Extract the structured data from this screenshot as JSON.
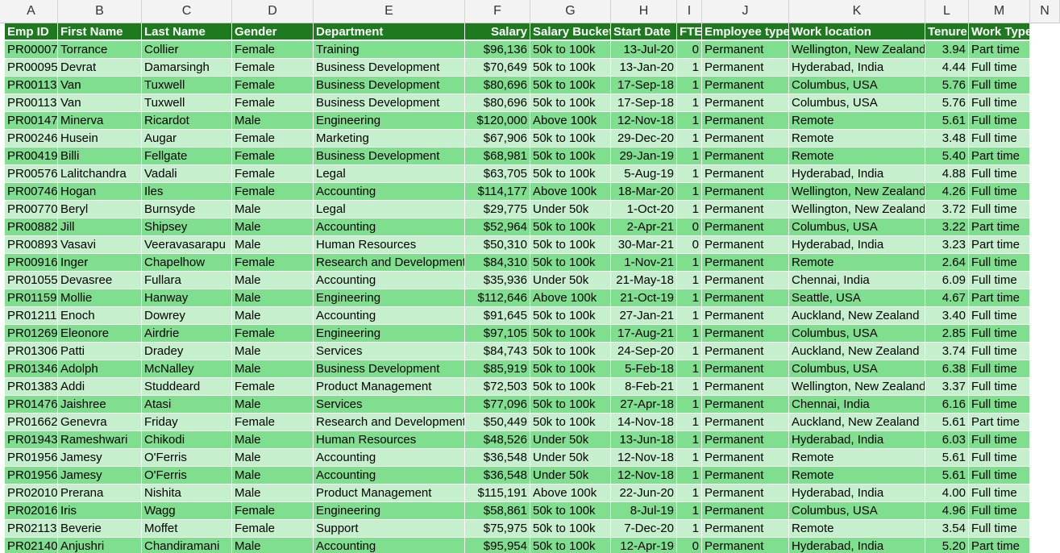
{
  "columns": [
    "A",
    "B",
    "C",
    "D",
    "E",
    "F",
    "G",
    "H",
    "I",
    "J",
    "K",
    "L",
    "M",
    "N"
  ],
  "headers": [
    "Emp ID",
    "First Name",
    "Last Name",
    "Gender",
    "Department",
    "Salary",
    "Salary Bucket",
    "Start Date",
    "FTE",
    "Employee type",
    "Work location",
    "Tenure",
    "Work Type"
  ],
  "rows": [
    [
      "PR00007",
      "Torrance",
      "Collier",
      "Female",
      "Training",
      "$96,136",
      "50k to 100k",
      "13-Jul-20",
      "0",
      "Permanent",
      "Wellington, New Zealand",
      "3.94",
      "Part time"
    ],
    [
      "PR00095",
      "Devrat",
      "Damarsingh",
      "Female",
      "Business Development",
      "$70,649",
      "50k to 100k",
      "13-Jan-20",
      "1",
      "Permanent",
      "Hyderabad, India",
      "4.44",
      "Full time"
    ],
    [
      "PR00113",
      "Van",
      "Tuxwell",
      "Female",
      "Business Development",
      "$80,696",
      "50k to 100k",
      "17-Sep-18",
      "1",
      "Permanent",
      "Columbus, USA",
      "5.76",
      "Full time"
    ],
    [
      "PR00113",
      "Van",
      "Tuxwell",
      "Female",
      "Business Development",
      "$80,696",
      "50k to 100k",
      "17-Sep-18",
      "1",
      "Permanent",
      "Columbus, USA",
      "5.76",
      "Full time"
    ],
    [
      "PR00147",
      "Minerva",
      "Ricardot",
      "Male",
      "Engineering",
      "$120,000",
      "Above 100k",
      "12-Nov-18",
      "1",
      "Permanent",
      "Remote",
      "5.61",
      "Full time"
    ],
    [
      "PR00246",
      "Husein",
      "Augar",
      "Female",
      "Marketing",
      "$67,906",
      "50k to 100k",
      "29-Dec-20",
      "1",
      "Permanent",
      "Remote",
      "3.48",
      "Full time"
    ],
    [
      "PR00419",
      "Billi",
      "Fellgate",
      "Female",
      "Business Development",
      "$68,981",
      "50k to 100k",
      "29-Jan-19",
      "1",
      "Permanent",
      "Remote",
      "5.40",
      "Part time"
    ],
    [
      "PR00576",
      "Lalitchandra",
      "Vadali",
      "Female",
      "Legal",
      "$63,705",
      "50k to 100k",
      "5-Aug-19",
      "1",
      "Permanent",
      "Hyderabad, India",
      "4.88",
      "Full time"
    ],
    [
      "PR00746",
      "Hogan",
      "Iles",
      "Female",
      "Accounting",
      "$114,177",
      "Above 100k",
      "18-Mar-20",
      "1",
      "Permanent",
      "Wellington, New Zealand",
      "4.26",
      "Full time"
    ],
    [
      "PR00770",
      "Beryl",
      "Burnsyde",
      "Male",
      "Legal",
      "$29,775",
      "Under 50k",
      "1-Oct-20",
      "1",
      "Permanent",
      "Wellington, New Zealand",
      "3.72",
      "Full time"
    ],
    [
      "PR00882",
      "Jill",
      "Shipsey",
      "Male",
      "Accounting",
      "$52,964",
      "50k to 100k",
      "2-Apr-21",
      "0",
      "Permanent",
      "Columbus, USA",
      "3.22",
      "Part time"
    ],
    [
      "PR00893",
      "Vasavi",
      "Veeravasarapu",
      "Male",
      "Human Resources",
      "$50,310",
      "50k to 100k",
      "30-Mar-21",
      "0",
      "Permanent",
      "Hyderabad, India",
      "3.23",
      "Part time"
    ],
    [
      "PR00916",
      "Inger",
      "Chapelhow",
      "Female",
      "Research and Development",
      "$84,310",
      "50k to 100k",
      "1-Nov-21",
      "1",
      "Permanent",
      "Remote",
      "2.64",
      "Full time"
    ],
    [
      "PR01055",
      "Devasree",
      "Fullara",
      "Male",
      "Accounting",
      "$35,936",
      "Under 50k",
      "21-May-18",
      "1",
      "Permanent",
      "Chennai, India",
      "6.09",
      "Full time"
    ],
    [
      "PR01159",
      "Mollie",
      "Hanway",
      "Male",
      "Engineering",
      "$112,646",
      "Above 100k",
      "21-Oct-19",
      "1",
      "Permanent",
      "Seattle, USA",
      "4.67",
      "Part time"
    ],
    [
      "PR01211",
      "Enoch",
      "Dowrey",
      "Male",
      "Accounting",
      "$91,645",
      "50k to 100k",
      "27-Jan-21",
      "1",
      "Permanent",
      "Auckland, New Zealand",
      "3.40",
      "Full time"
    ],
    [
      "PR01269",
      "Eleonore",
      "Airdrie",
      "Female",
      "Engineering",
      "$97,105",
      "50k to 100k",
      "17-Aug-21",
      "1",
      "Permanent",
      "Columbus, USA",
      "2.85",
      "Full time"
    ],
    [
      "PR01306",
      "Patti",
      "Dradey",
      "Male",
      "Services",
      "$84,743",
      "50k to 100k",
      "24-Sep-20",
      "1",
      "Permanent",
      "Auckland, New Zealand",
      "3.74",
      "Full time"
    ],
    [
      "PR01346",
      "Adolph",
      "McNalley",
      "Male",
      "Business Development",
      "$85,919",
      "50k to 100k",
      "5-Feb-18",
      "1",
      "Permanent",
      "Columbus, USA",
      "6.38",
      "Full time"
    ],
    [
      "PR01383",
      "Addi",
      "Studdeard",
      "Female",
      "Product Management",
      "$72,503",
      "50k to 100k",
      "8-Feb-21",
      "1",
      "Permanent",
      "Wellington, New Zealand",
      "3.37",
      "Full time"
    ],
    [
      "PR01476",
      "Jaishree",
      "Atasi",
      "Male",
      "Services",
      "$77,096",
      "50k to 100k",
      "27-Apr-18",
      "1",
      "Permanent",
      "Chennai, India",
      "6.16",
      "Full time"
    ],
    [
      "PR01662",
      "Genevra",
      "Friday",
      "Female",
      "Research and Development",
      "$50,449",
      "50k to 100k",
      "14-Nov-18",
      "1",
      "Permanent",
      "Auckland, New Zealand",
      "5.61",
      "Part time"
    ],
    [
      "PR01943",
      "Rameshwari",
      "Chikodi",
      "Male",
      "Human Resources",
      "$48,526",
      "Under 50k",
      "13-Jun-18",
      "1",
      "Permanent",
      "Hyderabad, India",
      "6.03",
      "Full time"
    ],
    [
      "PR01956",
      "Jamesy",
      "O'Ferris",
      "Male",
      "Accounting",
      "$36,548",
      "Under 50k",
      "12-Nov-18",
      "1",
      "Permanent",
      "Remote",
      "5.61",
      "Full time"
    ],
    [
      "PR01956",
      "Jamesy",
      "O'Ferris",
      "Male",
      "Accounting",
      "$36,548",
      "Under 50k",
      "12-Nov-18",
      "1",
      "Permanent",
      "Remote",
      "5.61",
      "Full time"
    ],
    [
      "PR02010",
      "Prerana",
      "Nishita",
      "Male",
      "Product Management",
      "$115,191",
      "Above 100k",
      "22-Jun-20",
      "1",
      "Permanent",
      "Hyderabad, India",
      "4.00",
      "Full time"
    ],
    [
      "PR02016",
      "Iris",
      "Wagg",
      "Female",
      "Engineering",
      "$58,861",
      "50k to 100k",
      "8-Jul-19",
      "1",
      "Permanent",
      "Columbus, USA",
      "4.96",
      "Full time"
    ],
    [
      "PR02113",
      "Beverie",
      "Moffet",
      "Female",
      "Support",
      "$75,975",
      "50k to 100k",
      "7-Dec-20",
      "1",
      "Permanent",
      "Remote",
      "3.54",
      "Full time"
    ],
    [
      "PR02140",
      "Anjushri",
      "Chandiramani",
      "Male",
      "Accounting",
      "$95,954",
      "50k to 100k",
      "12-Apr-19",
      "0",
      "Permanent",
      "Hyderabad, India",
      "5.20",
      "Part time"
    ]
  ],
  "colors": {
    "header_bg": "#1e7a1e",
    "band_dark": "#7fdf8e",
    "band_light": "#c6efce"
  }
}
